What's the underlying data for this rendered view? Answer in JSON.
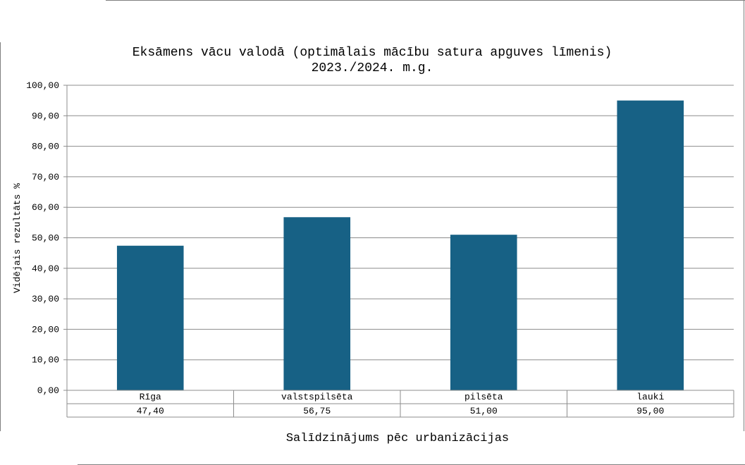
{
  "chart_data": {
    "type": "bar",
    "title": "Eksāmens vācu valodā (optimālais mācību satura apguves līmenis)",
    "subtitle": "2023./2024. m.g.",
    "xlabel": "Salīdzinājums pēc urbanizācijas",
    "ylabel": "Vidējais rezultāts %",
    "categories": [
      "Rīga",
      "valstspilsēta",
      "pilsēta",
      "lauki"
    ],
    "values": [
      47.4,
      56.75,
      51.0,
      95.0
    ],
    "value_labels": [
      "47,40",
      "56,75",
      "51,00",
      "95,00"
    ],
    "y_ticks": [
      "0,00",
      "10,00",
      "20,00",
      "30,00",
      "40,00",
      "50,00",
      "60,00",
      "70,00",
      "80,00",
      "90,00",
      "100,00"
    ],
    "ylim": [
      0,
      100
    ],
    "grid": true,
    "legend": "none",
    "bar_color": "#176185",
    "data_table": true
  }
}
